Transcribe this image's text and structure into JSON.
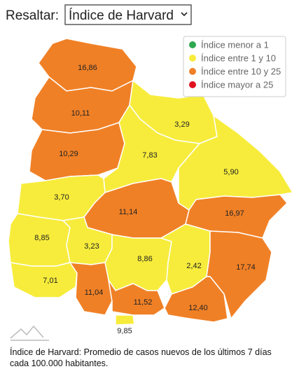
{
  "header": {
    "label": "Resaltar:",
    "select_value": "Índice de Harvard"
  },
  "legend": [
    {
      "label": "Índice menor a 1",
      "color": "#2fa84f"
    },
    {
      "label": "Índice entre 1 y 10",
      "color": "#f7ec3b"
    },
    {
      "label": "Índice entre 10 y 25",
      "color": "#f08026"
    },
    {
      "label": "Índice mayor a 25",
      "color": "#e0121f"
    }
  ],
  "regions": [
    {
      "label": "16,86",
      "value": 16.86,
      "color": "#f08026"
    },
    {
      "label": "10,11",
      "value": 10.11,
      "color": "#f08026"
    },
    {
      "label": "10,29",
      "value": 10.29,
      "color": "#f08026"
    },
    {
      "label": "3,29",
      "value": 3.29,
      "color": "#f7ec3b"
    },
    {
      "label": "7,83",
      "value": 7.83,
      "color": "#f7ec3b"
    },
    {
      "label": "5,90",
      "value": 5.9,
      "color": "#f7ec3b"
    },
    {
      "label": "3,70",
      "value": 3.7,
      "color": "#f7ec3b"
    },
    {
      "label": "11,14",
      "value": 11.14,
      "color": "#f08026"
    },
    {
      "label": "16,97",
      "value": 16.97,
      "color": "#f08026"
    },
    {
      "label": "8,85",
      "value": 8.85,
      "color": "#f7ec3b"
    },
    {
      "label": "3,23",
      "value": 3.23,
      "color": "#f7ec3b"
    },
    {
      "label": "8,86",
      "value": 8.86,
      "color": "#f7ec3b"
    },
    {
      "label": "2,42",
      "value": 2.42,
      "color": "#f7ec3b"
    },
    {
      "label": "17,74",
      "value": 17.74,
      "color": "#f08026"
    },
    {
      "label": "7,01",
      "value": 7.01,
      "color": "#f7ec3b"
    },
    {
      "label": "11,04",
      "value": 11.04,
      "color": "#f08026"
    },
    {
      "label": "11,52",
      "value": 11.52,
      "color": "#f08026"
    },
    {
      "label": "12,40",
      "value": 12.4,
      "color": "#f08026"
    },
    {
      "label": "9,85",
      "value": 9.85,
      "color": "#f7ec3b"
    }
  ],
  "footnote": [
    "Índice de Harvard: Promedio de casos nuevos de los últimos 7 días",
    "cada 100.000 habitantes."
  ]
}
